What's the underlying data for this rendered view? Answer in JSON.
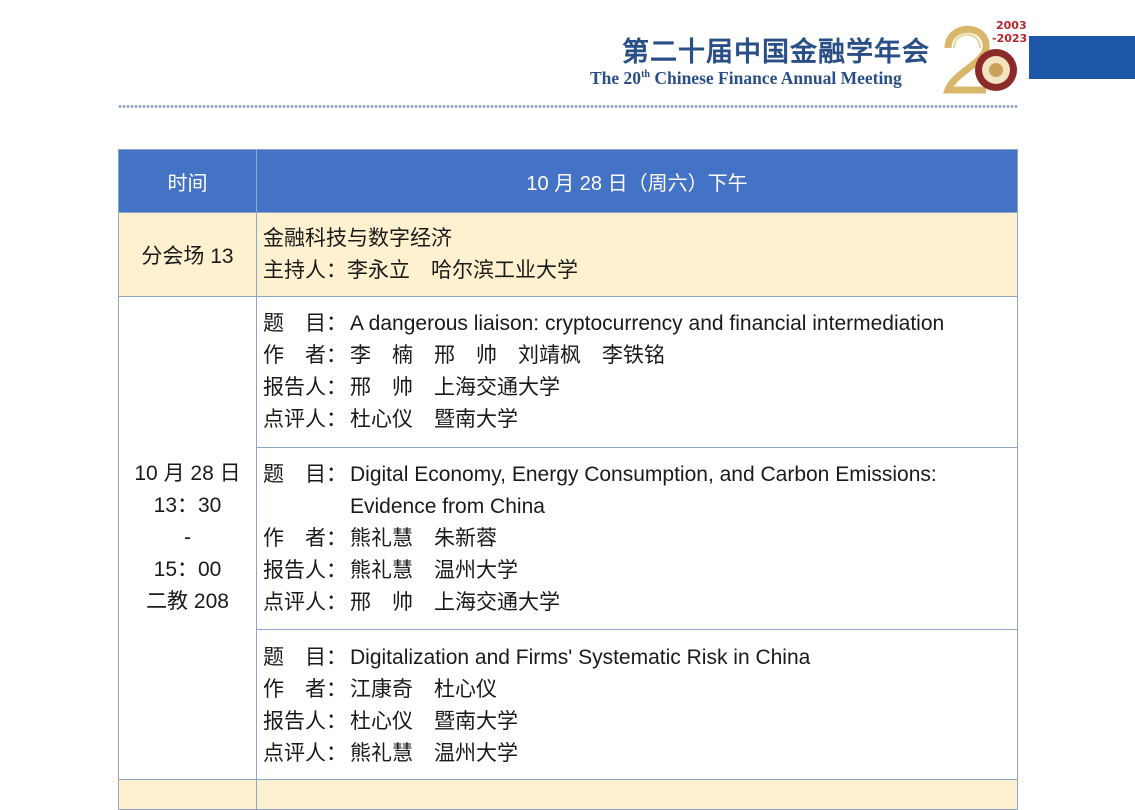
{
  "header": {
    "title_cn": "第二十届中国金融学年会",
    "title_en_pre": "The 20",
    "title_en_sup": "th",
    "title_en_post": " Chinese Finance Annual Meeting",
    "logo_years": "2003-2023"
  },
  "table": {
    "col_time": "时间",
    "col_date": "10 月 28 日（周六）下午",
    "session": {
      "name": "分会场 13",
      "topic": "金融科技与数字经济",
      "host": "主持人：李永立　哈尔滨工业大学"
    },
    "time_block": [
      "10 月 28 日",
      "13：30",
      "-",
      "15：00",
      "二教 208"
    ],
    "papers": [
      {
        "title_label": "题　目：",
        "title": "A dangerous liaison: cryptocurrency and financial intermediation",
        "authors_label": "作　者：",
        "authors": "李　楠　邢　帅　刘靖枫　李铁铭",
        "presenter_label": "报告人：",
        "presenter": "邢　帅　上海交通大学",
        "discussant_label": "点评人：",
        "discussant": "杜心仪　暨南大学"
      },
      {
        "title_label": "题　目：",
        "title": "Digital Economy, Energy Consumption, and Carbon Emissions: Evidence from China",
        "authors_label": "作　者：",
        "authors": "熊礼慧　朱新蓉",
        "presenter_label": "报告人：",
        "presenter": "熊礼慧　温州大学",
        "discussant_label": "点评人：",
        "discussant": "邢　帅　上海交通大学"
      },
      {
        "title_label": "题　目：",
        "title": "Digitalization and Firms' Systematic Risk in China",
        "authors_label": "作　者：",
        "authors": "江康奇　杜心仪",
        "presenter_label": "报告人：",
        "presenter": "杜心仪　暨南大学",
        "discussant_label": "点评人：",
        "discussant": "熊礼慧　温州大学"
      }
    ]
  },
  "colors": {
    "header_blue": "#4472c4",
    "brand_blue": "#2a4f86",
    "cream": "#fdf1cf"
  }
}
